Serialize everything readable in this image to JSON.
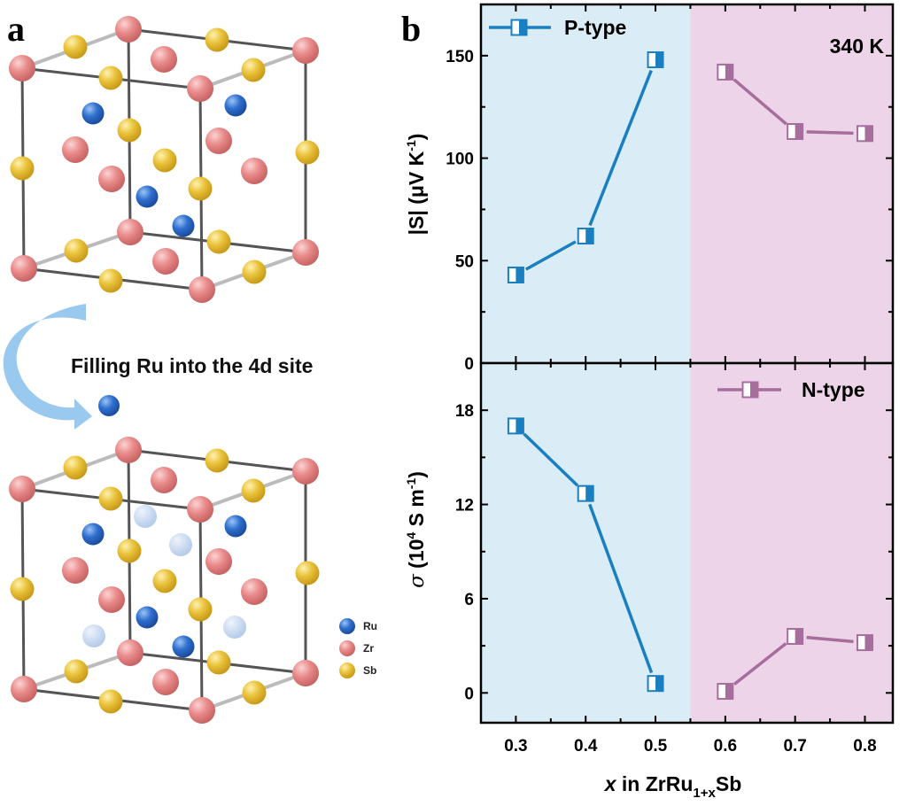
{
  "panel_a": {
    "label": "a",
    "caption": "Filling Ru into the 4d site",
    "legend": [
      {
        "label": "Ru",
        "color": "#2f6fcf"
      },
      {
        "label": "Zr",
        "color": "#e98a8a"
      },
      {
        "label": "Sb",
        "color": "#e9c23a"
      }
    ],
    "arrow_color": "#8fc3ee",
    "vacancy_color": "#c3d6f0"
  },
  "panel_b": {
    "label": "b",
    "temperature_label": "340 K",
    "region_colors": {
      "p_region": "#daedf7",
      "n_region": "#eed4e8"
    }
  },
  "chart_data": [
    {
      "type": "line",
      "title": "",
      "xlabel": "x in ZrRu1+xSb",
      "ylabel": "|S| (μV K-1)",
      "xlim": [
        0.25,
        0.84
      ],
      "ylim": [
        0,
        175
      ],
      "yticks": [
        "0",
        "50",
        "100",
        "150"
      ],
      "ytick_values": [
        0,
        50,
        100,
        150
      ],
      "grid": false,
      "annotation": "340 K",
      "region_boundary_x": 0.55,
      "legend": {
        "placement": "top-left",
        "entries": [
          "P-type"
        ]
      },
      "series": [
        {
          "name": "P-type",
          "color": "#1a7fc0",
          "x": [
            0.3,
            0.4,
            0.5
          ],
          "y": [
            43,
            62,
            148
          ]
        },
        {
          "name": "N-type",
          "color": "#a56e9c",
          "x": [
            0.6,
            0.7,
            0.8
          ],
          "y": [
            142,
            113,
            112
          ]
        }
      ]
    },
    {
      "type": "line",
      "title": "",
      "xlabel": "x in ZrRu1+xSb",
      "ylabel": "σ (10^4 S m-1)",
      "xlim": [
        0.25,
        0.84
      ],
      "ylim": [
        -1.9,
        21
      ],
      "xticks": [
        "0.3",
        "0.4",
        "0.5",
        "0.6",
        "0.7",
        "0.8"
      ],
      "xtick_values": [
        0.3,
        0.4,
        0.5,
        0.6,
        0.7,
        0.8
      ],
      "yticks": [
        "0",
        "6",
        "12",
        "18"
      ],
      "ytick_values": [
        0,
        6,
        12,
        18
      ],
      "grid": false,
      "region_boundary_x": 0.55,
      "legend": {
        "placement": "top-right",
        "entries": [
          "N-type"
        ]
      },
      "series": [
        {
          "name": "P-type",
          "color": "#1a7fc0",
          "x": [
            0.3,
            0.4,
            0.5
          ],
          "y": [
            17.0,
            12.7,
            0.6
          ]
        },
        {
          "name": "N-type",
          "color": "#a56e9c",
          "x": [
            0.6,
            0.7,
            0.8
          ],
          "y": [
            0.1,
            3.6,
            3.2
          ]
        }
      ]
    }
  ],
  "axis_text": {
    "x_prefix": "x",
    "x_mid": " in ZrRu",
    "x_sub": "1+x",
    "x_suffix": "Sb",
    "top_y_main": "|S| (μV K",
    "top_y_sup": "-1",
    "top_y_end": ")",
    "bottom_y_sigma": "σ",
    "bottom_y_main": " (10",
    "bottom_y_sup1": "4",
    "bottom_y_mid": " S m",
    "bottom_y_sup2": "-1",
    "bottom_y_end": ")"
  }
}
